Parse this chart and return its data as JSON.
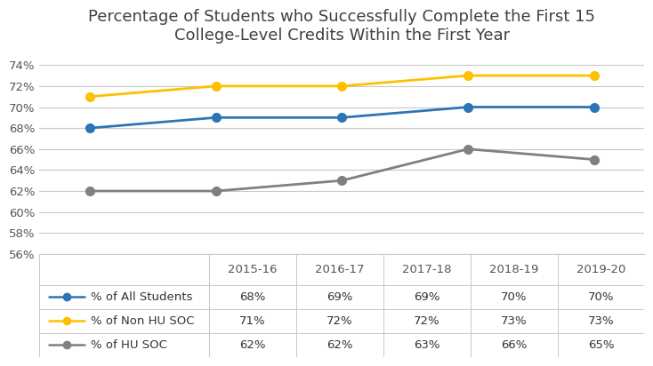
{
  "title": "Percentage of Students who Successfully Complete the First 15\nCollege-Level Credits Within the First Year",
  "categories": [
    "2015-16",
    "2016-17",
    "2017-18",
    "2018-19",
    "2019-20"
  ],
  "series": [
    {
      "label": "% of All Students",
      "values": [
        68,
        69,
        69,
        70,
        70
      ],
      "color": "#2E75B6",
      "marker": "o",
      "linestyle": "-"
    },
    {
      "label": "% of Non HU SOC",
      "values": [
        71,
        72,
        72,
        73,
        73
      ],
      "color": "#FFC000",
      "marker": "o",
      "linestyle": "-"
    },
    {
      "label": "% of HU SOC",
      "values": [
        62,
        62,
        63,
        66,
        65
      ],
      "color": "#808080",
      "marker": "o",
      "linestyle": "-"
    }
  ],
  "ylim": [
    56,
    75
  ],
  "yticks": [
    56,
    58,
    60,
    62,
    64,
    66,
    68,
    70,
    72,
    74
  ],
  "table_values": [
    [
      "68%",
      "69%",
      "69%",
      "70%",
      "70%"
    ],
    [
      "71%",
      "72%",
      "72%",
      "73%",
      "73%"
    ],
    [
      "62%",
      "62%",
      "63%",
      "66%",
      "65%"
    ]
  ],
  "table_row_labels": [
    "% of All Students",
    "% of Non HU SOC",
    "% of HU SOC"
  ],
  "background_color": "#FFFFFF",
  "grid_color": "#C8C8C8",
  "title_fontsize": 13,
  "tick_fontsize": 9.5,
  "table_fontsize": 9.5,
  "linewidth": 2.0,
  "markersize": 7
}
